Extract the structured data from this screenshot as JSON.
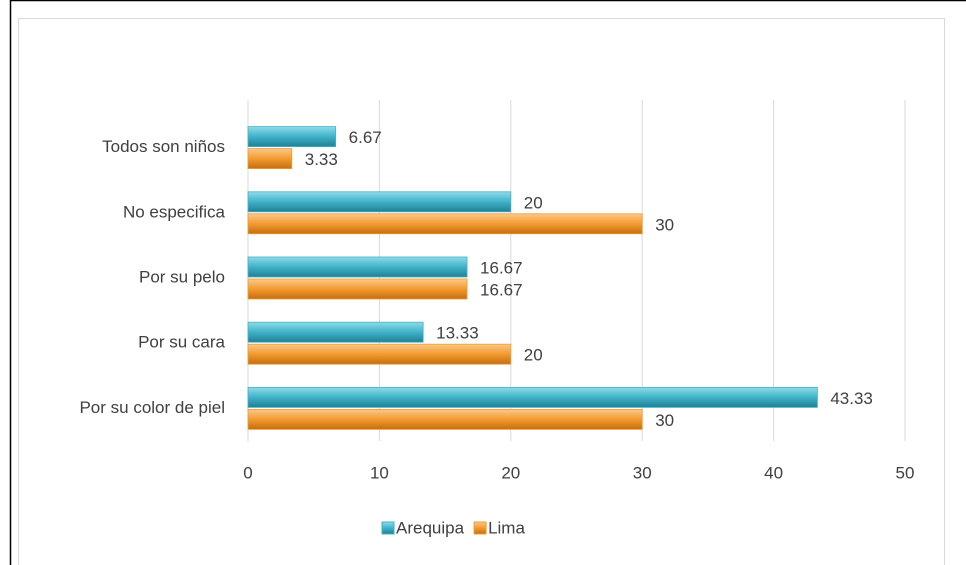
{
  "chart_data": {
    "type": "hbar",
    "categories": [
      "Todos son niños",
      "No especifica",
      "Por su pelo",
      "Por su cara",
      "Por su color de piel"
    ],
    "series": [
      {
        "name": "Arequipa",
        "color": "#3fb2c9",
        "values": [
          6.67,
          20,
          16.67,
          13.33,
          43.33
        ]
      },
      {
        "name": "Lima",
        "color": "#f39a2f",
        "values": [
          3.33,
          30,
          16.67,
          20,
          30
        ]
      }
    ],
    "xlim": [
      0,
      50
    ],
    "xticks": [
      0,
      10,
      20,
      30,
      40,
      50
    ],
    "grid": true,
    "legend": "bottom"
  }
}
